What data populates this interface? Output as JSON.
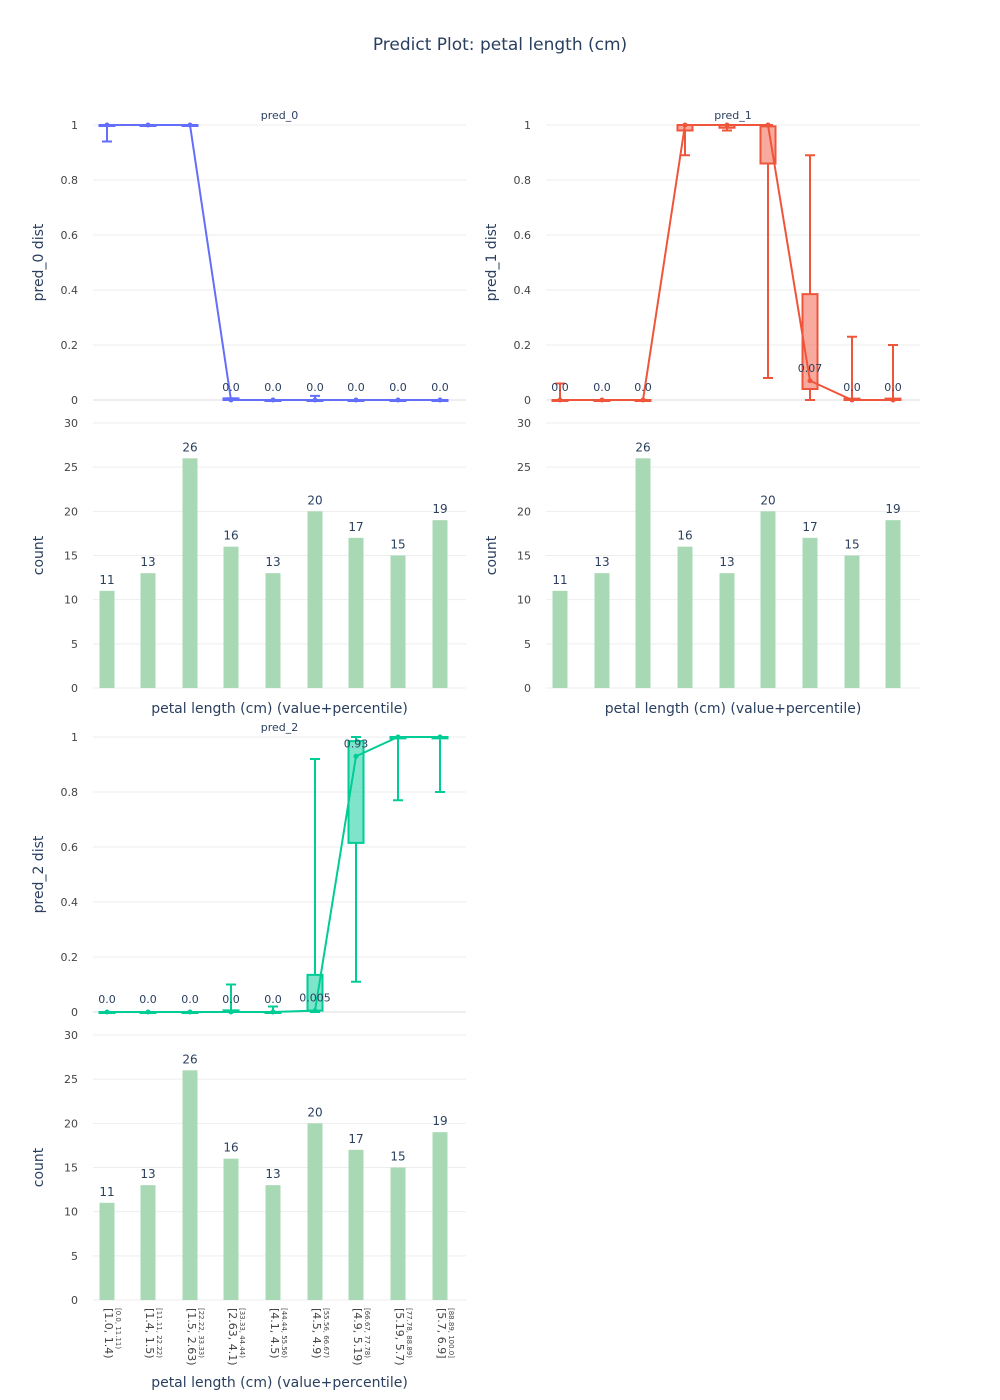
{
  "title": "Predict Plot: petal length (cm)",
  "colors": {
    "pred_0": "#636efa",
    "pred_1": "#ef553b",
    "pred_2": "#00cc96",
    "count_bar": "#a8d8b4",
    "grid": "#eeeeee",
    "text": "#2a3f5f",
    "axis_text": "#444444"
  },
  "chart_data": {
    "type": "box+bar",
    "categories": [
      "[1.0, 1.4)",
      "[1.4, 1.5)",
      "[1.5, 2.63)",
      "[2.63, 4.1)",
      "[4.1, 4.5)",
      "[4.5, 4.9)",
      "[4.9, 5.19)",
      "[5.19, 5.7)",
      "[5.7, 6.9]"
    ],
    "percentile_labels": [
      "[0.0, 11.11)",
      "[11.11, 22.22)",
      "[22.22, 33.33)",
      "[33.33, 44.44)",
      "[44.44, 55.56)",
      "[55.56, 66.67)",
      "[66.67, 77.78)",
      "[77.78, 88.89)",
      "[88.89, 100.0]"
    ],
    "count_ylim": [
      0,
      30
    ],
    "count_yticks": [
      0,
      5,
      10,
      15,
      20,
      25,
      30
    ],
    "dist_ylim": [
      0,
      1
    ],
    "dist_yticks": [
      0,
      0.2,
      0.4,
      0.6,
      0.8,
      1
    ],
    "xlabel": "petal length (cm) (value+percentile)",
    "count_ylabel": "count",
    "counts": [
      11,
      13,
      26,
      16,
      13,
      20,
      17,
      15,
      19
    ],
    "panels": [
      {
        "name": "pred_0",
        "ylabel": "pred_0 dist",
        "color_key": "pred_0",
        "medians": [
          1,
          1,
          1,
          0,
          0,
          0,
          0,
          0,
          0
        ],
        "median_labels": [
          "",
          "",
          "",
          "0.0",
          "0.0",
          "0.0",
          "0.0",
          "0.0",
          "0.0"
        ],
        "boxes": [
          {
            "q1": 1.0,
            "q3": 1.0,
            "lo": 0.94,
            "hi": 1.0
          },
          {
            "q1": 1.0,
            "q3": 1.0,
            "lo": 1.0,
            "hi": 1.0
          },
          {
            "q1": 1.0,
            "q3": 1.0,
            "lo": 1.0,
            "hi": 1.0
          },
          {
            "q1": 0.0,
            "q3": 0.006,
            "lo": 0.0,
            "hi": 0.006
          },
          {
            "q1": 0.0,
            "q3": 0.0,
            "lo": 0.0,
            "hi": 0.0
          },
          {
            "q1": 0.0,
            "q3": 0.0,
            "lo": 0.0,
            "hi": 0.015
          },
          {
            "q1": 0.0,
            "q3": 0.0,
            "lo": 0.0,
            "hi": 0.0
          },
          {
            "q1": 0.0,
            "q3": 0.0,
            "lo": 0.0,
            "hi": 0.0
          },
          {
            "q1": 0.0,
            "q3": 0.0,
            "lo": 0.0,
            "hi": 0.0
          }
        ]
      },
      {
        "name": "pred_1",
        "ylabel": "pred_1 dist",
        "color_key": "pred_1",
        "medians": [
          0,
          0,
          0,
          1,
          1,
          1,
          0.07,
          0,
          0
        ],
        "median_labels": [
          "0.0",
          "0.0",
          "0.0",
          "",
          "",
          "",
          "0.07",
          "0.0",
          "0.0"
        ],
        "boxes": [
          {
            "q1": 0.0,
            "q3": 0.0,
            "lo": 0.0,
            "hi": 0.06
          },
          {
            "q1": 0.0,
            "q3": 0.0,
            "lo": 0.0,
            "hi": 0.0
          },
          {
            "q1": 0.0,
            "q3": 0.0,
            "lo": 0.0,
            "hi": 0.0
          },
          {
            "q1": 0.98,
            "q3": 1.0,
            "lo": 0.89,
            "hi": 1.0
          },
          {
            "q1": 0.99,
            "q3": 1.0,
            "lo": 0.98,
            "hi": 1.0
          },
          {
            "q1": 0.86,
            "q3": 0.995,
            "lo": 0.08,
            "hi": 1.0
          },
          {
            "q1": 0.04,
            "q3": 0.385,
            "lo": 0.0,
            "hi": 0.89
          },
          {
            "q1": 0.0,
            "q3": 0.005,
            "lo": 0.0,
            "hi": 0.23
          },
          {
            "q1": 0.0,
            "q3": 0.005,
            "lo": 0.0,
            "hi": 0.2
          }
        ]
      },
      {
        "name": "pred_2",
        "ylabel": "pred_2 dist",
        "color_key": "pred_2",
        "medians": [
          0,
          0,
          0,
          0,
          0,
          0.005,
          0.93,
          1,
          1
        ],
        "median_labels": [
          "0.0",
          "0.0",
          "0.0",
          "0.0",
          "0.0",
          "0.005",
          "0.93",
          "",
          ""
        ],
        "boxes": [
          {
            "q1": 0.0,
            "q3": 0.0,
            "lo": 0.0,
            "hi": 0.0
          },
          {
            "q1": 0.0,
            "q3": 0.0,
            "lo": 0.0,
            "hi": 0.0
          },
          {
            "q1": 0.0,
            "q3": 0.0,
            "lo": 0.0,
            "hi": 0.0
          },
          {
            "q1": 0.0,
            "q3": 0.006,
            "lo": 0.0,
            "hi": 0.1
          },
          {
            "q1": 0.0,
            "q3": 0.0,
            "lo": 0.0,
            "hi": 0.02
          },
          {
            "q1": 0.005,
            "q3": 0.135,
            "lo": 0.0,
            "hi": 0.92
          },
          {
            "q1": 0.615,
            "q3": 0.985,
            "lo": 0.11,
            "hi": 1.0
          },
          {
            "q1": 0.995,
            "q3": 1.0,
            "lo": 0.77,
            "hi": 1.0
          },
          {
            "q1": 0.995,
            "q3": 1.0,
            "lo": 0.8,
            "hi": 1.0
          }
        ]
      }
    ]
  }
}
